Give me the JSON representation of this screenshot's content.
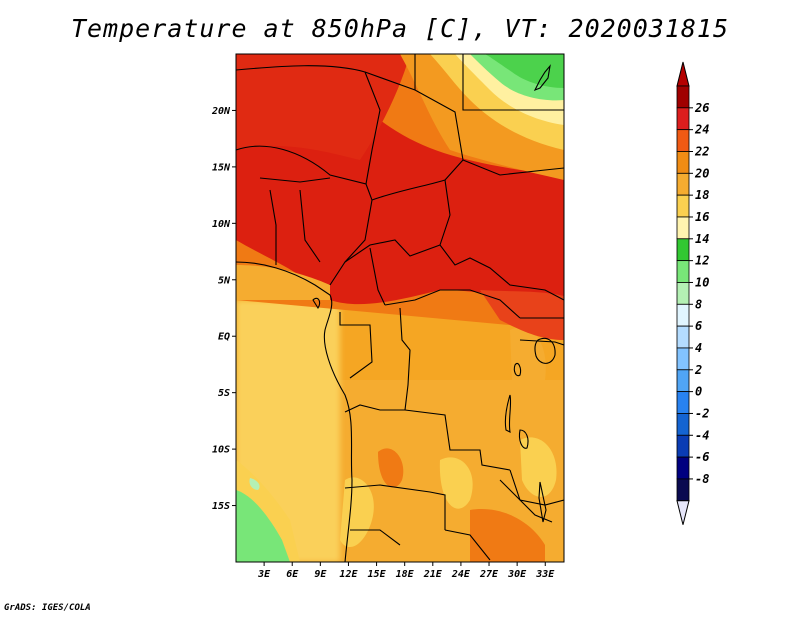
{
  "title": "Temperature at 850hPa [C], VT: 2020031815",
  "credit": "GrADS: IGES/COLA",
  "map": {
    "lon_range": [
      0,
      35
    ],
    "lat_range": [
      -20,
      25
    ],
    "lat_ticks": [
      {
        "value": 20,
        "label": "20N"
      },
      {
        "value": 15,
        "label": "15N"
      },
      {
        "value": 10,
        "label": "10N"
      },
      {
        "value": 5,
        "label": "5N"
      },
      {
        "value": 0,
        "label": "EQ"
      },
      {
        "value": -5,
        "label": "5S"
      },
      {
        "value": -10,
        "label": "10S"
      },
      {
        "value": -15,
        "label": "15S"
      }
    ],
    "lon_ticks": [
      {
        "value": 3,
        "label": "3E"
      },
      {
        "value": 6,
        "label": "6E"
      },
      {
        "value": 9,
        "label": "9E"
      },
      {
        "value": 12,
        "label": "12E"
      },
      {
        "value": 15,
        "label": "15E"
      },
      {
        "value": 18,
        "label": "18E"
      },
      {
        "value": 21,
        "label": "21E"
      },
      {
        "value": 24,
        "label": "24E"
      },
      {
        "value": 27,
        "label": "27E"
      },
      {
        "value": 30,
        "label": "30E"
      },
      {
        "value": 33,
        "label": "33E"
      }
    ]
  },
  "colorbar": {
    "levels": [
      "26",
      "24",
      "22",
      "20",
      "18",
      "16",
      "14",
      "12",
      "10",
      "8",
      "6",
      "4",
      "2",
      "0",
      "-2",
      "-4",
      "-6",
      "-8"
    ],
    "colors": [
      "#a00000",
      "#dc1e1e",
      "#f05a14",
      "#f08c14",
      "#f5ac30",
      "#fad050",
      "#fff4b0",
      "#32c832",
      "#78e678",
      "#b4f0b4",
      "#e1f5ff",
      "#b4dcff",
      "#82c3ff",
      "#50a5f5",
      "#2882f0",
      "#1464d2",
      "#0a3cb4",
      "#000080",
      "#0a0a50"
    ],
    "top_color": "#b40000",
    "bottom_color": "#e6e6fa"
  }
}
